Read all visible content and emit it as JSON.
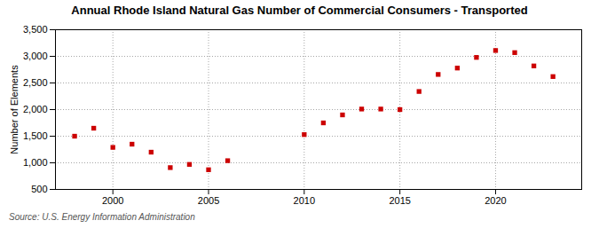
{
  "chart_data": {
    "type": "scatter",
    "title": "Annual Rhode Island Natural Gas Number of Commercial Consumers - Transported",
    "ylabel": "Number of Elements",
    "source": "Source: U.S. Energy Information Administration",
    "x": [
      1998,
      1999,
      2000,
      2001,
      2002,
      2003,
      2004,
      2005,
      2006,
      2010,
      2011,
      2012,
      2013,
      2014,
      2015,
      2016,
      2017,
      2018,
      2019,
      2020,
      2021,
      2022,
      2023
    ],
    "values": [
      1500,
      1650,
      1290,
      1350,
      1200,
      910,
      970,
      870,
      1040,
      1530,
      1750,
      1900,
      2010,
      2010,
      2000,
      2340,
      2660,
      2780,
      2980,
      3110,
      3070,
      2820,
      2620
    ],
    "color": "#cc0000",
    "marker": "square",
    "xlim": [
      1997.0,
      2024.5
    ],
    "xticks": [
      2000,
      2005,
      2010,
      2015,
      2020
    ],
    "ylim": [
      500,
      3500
    ],
    "yticks": [
      500,
      {
        "value": 1000,
        "label": "1,000"
      },
      {
        "value": 1500,
        "label": "1,500"
      },
      {
        "value": 2000,
        "label": "2,000"
      },
      {
        "value": 2500,
        "label": "2,500"
      },
      {
        "value": 3000,
        "label": "3,000"
      },
      {
        "value": 3500,
        "label": "3,500"
      }
    ],
    "grid": true
  }
}
